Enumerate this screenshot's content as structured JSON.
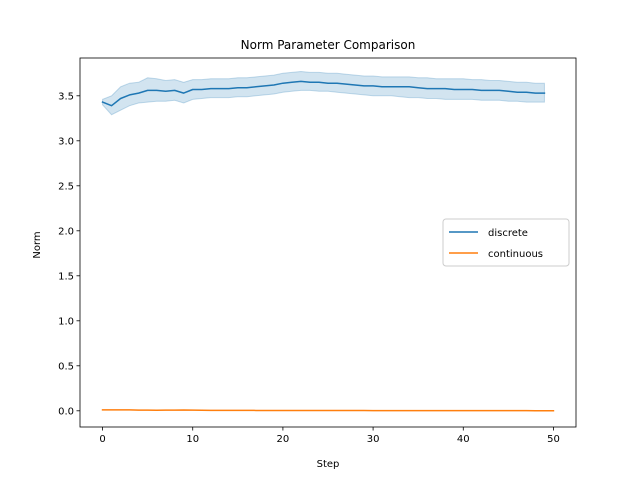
{
  "chart_data": {
    "type": "line",
    "title": "Norm Parameter Comparison",
    "xlabel": "Step",
    "ylabel": "Norm",
    "xlim": [
      -2.5,
      52.5
    ],
    "ylim": [
      -0.18,
      3.92
    ],
    "xticks": [
      0,
      10,
      20,
      30,
      40,
      50
    ],
    "xtick_labels": [
      "0",
      "10",
      "20",
      "30",
      "40",
      "50"
    ],
    "yticks": [
      0.0,
      0.5,
      1.0,
      1.5,
      2.0,
      2.5,
      3.0,
      3.5
    ],
    "ytick_labels": [
      "0.0",
      "0.5",
      "1.0",
      "1.5",
      "2.0",
      "2.5",
      "3.0",
      "3.5"
    ],
    "grid": false,
    "legend_position": "center-right",
    "series": [
      {
        "name": "discrete",
        "color": "#1f77b4",
        "x": [
          0,
          1,
          2,
          3,
          4,
          5,
          6,
          7,
          8,
          9,
          10,
          11,
          12,
          13,
          14,
          15,
          16,
          17,
          18,
          19,
          20,
          21,
          22,
          23,
          24,
          25,
          26,
          27,
          28,
          29,
          30,
          31,
          32,
          33,
          34,
          35,
          36,
          37,
          38,
          39,
          40,
          41,
          42,
          43,
          44,
          45,
          46,
          47,
          48,
          49
        ],
        "values": [
          3.43,
          3.39,
          3.47,
          3.51,
          3.53,
          3.56,
          3.56,
          3.55,
          3.56,
          3.53,
          3.57,
          3.57,
          3.58,
          3.58,
          3.58,
          3.59,
          3.59,
          3.6,
          3.61,
          3.62,
          3.64,
          3.65,
          3.66,
          3.65,
          3.65,
          3.64,
          3.64,
          3.63,
          3.62,
          3.61,
          3.61,
          3.6,
          3.6,
          3.6,
          3.6,
          3.59,
          3.58,
          3.58,
          3.58,
          3.57,
          3.57,
          3.57,
          3.56,
          3.56,
          3.56,
          3.55,
          3.54,
          3.54,
          3.53,
          3.53
        ],
        "ci_lower": [
          3.4,
          3.29,
          3.34,
          3.39,
          3.42,
          3.43,
          3.44,
          3.44,
          3.45,
          3.42,
          3.46,
          3.47,
          3.48,
          3.48,
          3.48,
          3.49,
          3.49,
          3.5,
          3.51,
          3.52,
          3.54,
          3.55,
          3.56,
          3.56,
          3.55,
          3.55,
          3.54,
          3.53,
          3.52,
          3.51,
          3.5,
          3.5,
          3.5,
          3.49,
          3.48,
          3.48,
          3.47,
          3.47,
          3.46,
          3.46,
          3.46,
          3.46,
          3.45,
          3.45,
          3.45,
          3.44,
          3.44,
          3.43,
          3.43,
          3.43
        ],
        "ci_upper": [
          3.46,
          3.5,
          3.6,
          3.64,
          3.65,
          3.7,
          3.69,
          3.67,
          3.68,
          3.65,
          3.68,
          3.68,
          3.69,
          3.69,
          3.69,
          3.7,
          3.7,
          3.71,
          3.72,
          3.73,
          3.75,
          3.76,
          3.77,
          3.76,
          3.76,
          3.75,
          3.75,
          3.74,
          3.73,
          3.72,
          3.72,
          3.71,
          3.71,
          3.71,
          3.71,
          3.7,
          3.7,
          3.69,
          3.69,
          3.69,
          3.69,
          3.68,
          3.68,
          3.67,
          3.67,
          3.66,
          3.65,
          3.65,
          3.64,
          3.64
        ]
      },
      {
        "name": "continuous",
        "color": "#ff7f0e",
        "x": [
          0,
          1,
          2,
          3,
          4,
          5,
          6,
          7,
          8,
          9,
          10,
          11,
          12,
          13,
          14,
          15,
          16,
          17,
          18,
          19,
          20,
          21,
          22,
          23,
          24,
          25,
          26,
          27,
          28,
          29,
          30,
          31,
          32,
          33,
          34,
          35,
          36,
          37,
          38,
          39,
          40,
          41,
          42,
          43,
          44,
          45,
          46,
          47,
          48,
          49,
          50
        ],
        "values": [
          0.01,
          0.01,
          0.01,
          0.01,
          0.008,
          0.007,
          0.006,
          0.007,
          0.008,
          0.009,
          0.007,
          0.006,
          0.005,
          0.005,
          0.005,
          0.005,
          0.005,
          0.004,
          0.004,
          0.004,
          0.004,
          0.003,
          0.003,
          0.003,
          0.003,
          0.003,
          0.003,
          0.003,
          0.003,
          0.003,
          0.002,
          0.002,
          0.002,
          0.002,
          0.002,
          0.002,
          0.002,
          0.002,
          0.002,
          0.002,
          0.002,
          0.002,
          0.002,
          0.002,
          0.002,
          0.002,
          0.002,
          0.002,
          0.001,
          0.001,
          0.001
        ]
      }
    ]
  }
}
